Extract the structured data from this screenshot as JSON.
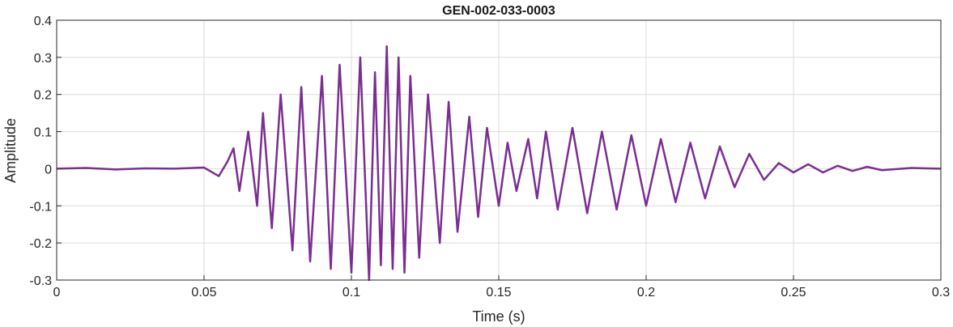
{
  "chart_data": {
    "type": "line",
    "title": "GEN-002-033-0003",
    "xlabel": "Time (s)",
    "ylabel": "Amplitude",
    "xlim": [
      0,
      0.3
    ],
    "ylim": [
      -0.3,
      0.4
    ],
    "xticks": [
      0,
      0.05,
      0.1,
      0.15,
      0.2,
      0.25,
      0.3
    ],
    "xtick_labels": [
      "0",
      "0.05",
      "0.1",
      "0.15",
      "0.2",
      "0.25",
      "0.3"
    ],
    "yticks": [
      -0.3,
      -0.2,
      -0.1,
      0,
      0.1,
      0.2,
      0.3,
      0.4
    ],
    "ytick_labels": [
      "-0.3",
      "-0.2",
      "-0.1",
      "0",
      "0.1",
      "0.2",
      "0.3",
      "0.4"
    ],
    "grid": true,
    "series": [
      {
        "color": "#7a2e91",
        "x": [
          0.0,
          0.01,
          0.02,
          0.03,
          0.04,
          0.05,
          0.055,
          0.058,
          0.06,
          0.062,
          0.065,
          0.068,
          0.07,
          0.073,
          0.076,
          0.08,
          0.083,
          0.086,
          0.09,
          0.093,
          0.096,
          0.1,
          0.103,
          0.106,
          0.108,
          0.11,
          0.112,
          0.114,
          0.116,
          0.118,
          0.12,
          0.123,
          0.126,
          0.13,
          0.133,
          0.136,
          0.14,
          0.143,
          0.146,
          0.15,
          0.153,
          0.156,
          0.16,
          0.163,
          0.166,
          0.17,
          0.175,
          0.18,
          0.185,
          0.19,
          0.195,
          0.2,
          0.205,
          0.21,
          0.215,
          0.22,
          0.225,
          0.23,
          0.235,
          0.24,
          0.245,
          0.25,
          0.255,
          0.26,
          0.265,
          0.27,
          0.275,
          0.28,
          0.29,
          0.3
        ],
        "y": [
          0.0,
          0.002,
          -0.002,
          0.001,
          0.0,
          0.003,
          -0.02,
          0.02,
          0.055,
          -0.06,
          0.1,
          -0.1,
          0.15,
          -0.16,
          0.2,
          -0.22,
          0.22,
          -0.25,
          0.25,
          -0.27,
          0.28,
          -0.28,
          0.3,
          -0.3,
          0.26,
          -0.26,
          0.33,
          -0.27,
          0.3,
          -0.28,
          0.25,
          -0.24,
          0.2,
          -0.2,
          0.18,
          -0.17,
          0.14,
          -0.13,
          0.11,
          -0.1,
          0.07,
          -0.06,
          0.08,
          -0.08,
          0.1,
          -0.11,
          0.11,
          -0.12,
          0.1,
          -0.11,
          0.09,
          -0.1,
          0.08,
          -0.09,
          0.07,
          -0.08,
          0.06,
          -0.05,
          0.04,
          -0.03,
          0.015,
          -0.01,
          0.012,
          -0.01,
          0.008,
          -0.006,
          0.005,
          -0.004,
          0.002,
          0.0
        ]
      }
    ]
  }
}
